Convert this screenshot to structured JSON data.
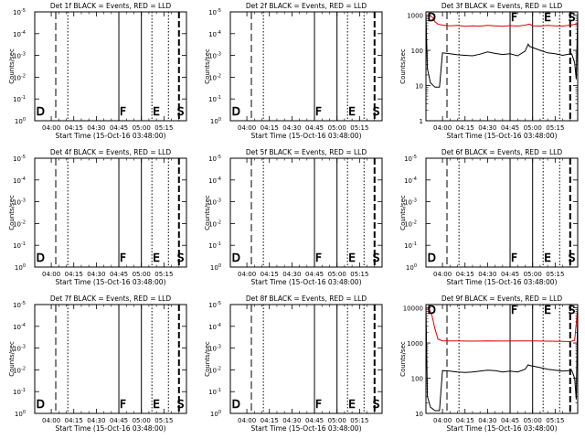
{
  "chart_data": [
    {
      "type": "line",
      "title": "Det 1f BLACK = Events, RED = LLD",
      "xlabel": "Start Time (15-Oct-16 03:48:00)",
      "ylabel": "Counts/sec",
      "scale": "log",
      "yticks": [
        "10",
        "10",
        "10",
        "10",
        "10",
        "10"
      ],
      "yexps": [
        "0",
        "-1",
        "-2",
        "-3",
        "-4",
        "-5"
      ],
      "xticks": [
        "04:00",
        "04:15",
        "04:30",
        "04:45",
        "05:00",
        "05:15"
      ],
      "markers": [
        "D",
        "F",
        "E",
        "S"
      ],
      "series": []
    },
    {
      "type": "line",
      "title": "Det 2f BLACK = Events, RED = LLD",
      "xlabel": "Start Time (15-Oct-16 03:48:00)",
      "ylabel": "Counts/sec",
      "scale": "log",
      "yticks": [
        "10",
        "10",
        "10",
        "10",
        "10",
        "10"
      ],
      "yexps": [
        "0",
        "-1",
        "-2",
        "-3",
        "-4",
        "-5"
      ],
      "xticks": [
        "04:00",
        "04:15",
        "04:30",
        "04:45",
        "05:00",
        "05:15"
      ],
      "markers": [
        "D",
        "F",
        "E",
        "S"
      ],
      "series": []
    },
    {
      "type": "line",
      "title": "Det 3f BLACK = Events, RED = LLD",
      "xlabel": "Start Time (15-Oct-16 03:48:00)",
      "ylabel": "Counts/sec",
      "scale": "log",
      "yticks": [
        "1",
        "10",
        "100",
        "1000"
      ],
      "yexps": [],
      "xticks": [
        "04:00",
        "04:15",
        "04:30",
        "04:45",
        "05:00",
        "05:15"
      ],
      "markers": [
        "D",
        "F",
        "E",
        "S"
      ],
      "series": [
        {
          "color": "#dd0000",
          "x": [
            -11,
            -9,
            -7,
            -5,
            -3,
            0,
            5,
            10,
            15,
            20,
            25,
            30,
            35,
            40,
            45,
            50,
            55,
            58,
            60,
            65,
            70,
            75,
            80,
            85,
            88,
            90
          ],
          "y": [
            1000,
            980,
            900,
            650,
            560,
            520,
            500,
            510,
            480,
            500,
            490,
            510,
            500,
            480,
            505,
            490,
            520,
            560,
            500,
            490,
            510,
            500,
            490,
            520,
            550,
            560
          ]
        },
        {
          "color": "#000000",
          "x": [
            -11,
            -10,
            -8,
            -5,
            -2,
            0,
            5,
            10,
            15,
            20,
            25,
            30,
            35,
            40,
            45,
            50,
            55,
            57,
            58,
            60,
            65,
            70,
            75,
            80,
            84,
            86,
            88,
            89,
            90
          ],
          "y": [
            1000,
            30,
            12,
            9,
            9,
            85,
            80,
            75,
            72,
            70,
            78,
            90,
            82,
            76,
            80,
            70,
            95,
            150,
            130,
            120,
            100,
            85,
            80,
            72,
            78,
            80,
            45,
            15,
            1000
          ]
        }
      ]
    },
    {
      "type": "line",
      "title": "Det 4f BLACK = Events, RED = LLD",
      "xlabel": "Start Time (15-Oct-16 03:48:00)",
      "ylabel": "Counts/sec",
      "scale": "log",
      "yticks": [
        "10",
        "10",
        "10",
        "10",
        "10",
        "10"
      ],
      "yexps": [
        "0",
        "-1",
        "-2",
        "-3",
        "-4",
        "-5"
      ],
      "xticks": [
        "04:00",
        "04:15",
        "04:30",
        "04:45",
        "05:00",
        "05:15"
      ],
      "markers": [
        "D",
        "F",
        "E",
        "S"
      ],
      "series": []
    },
    {
      "type": "line",
      "title": "Det 5f BLACK = Events, RED = LLD",
      "xlabel": "Start Time (15-Oct-16 03:48:00)",
      "ylabel": "Counts/sec",
      "scale": "log",
      "yticks": [
        "10",
        "10",
        "10",
        "10",
        "10",
        "10"
      ],
      "yexps": [
        "0",
        "-1",
        "-2",
        "-3",
        "-4",
        "-5"
      ],
      "xticks": [
        "04:00",
        "04:15",
        "04:30",
        "04:45",
        "05:00",
        "05:15"
      ],
      "markers": [
        "D",
        "F",
        "E",
        "S"
      ],
      "series": []
    },
    {
      "type": "line",
      "title": "Det 6f BLACK = Events, RED = LLD",
      "xlabel": "Start Time (15-Oct-16 03:48:00)",
      "ylabel": "Counts/sec",
      "scale": "log",
      "yticks": [
        "10",
        "10",
        "10",
        "10",
        "10",
        "10"
      ],
      "yexps": [
        "0",
        "-1",
        "-2",
        "-3",
        "-4",
        "-5"
      ],
      "xticks": [
        "04:00",
        "04:15",
        "04:30",
        "04:45",
        "05:00",
        "05:15"
      ],
      "markers": [
        "D",
        "F",
        "E",
        "S"
      ],
      "series": []
    },
    {
      "type": "line",
      "title": "Det 7f BLACK = Events, RED = LLD",
      "xlabel": "Start Time (15-Oct-16 03:48:00)",
      "ylabel": "Counts/sec",
      "scale": "log",
      "yticks": [
        "10",
        "10",
        "10",
        "10",
        "10",
        "10"
      ],
      "yexps": [
        "0",
        "-1",
        "-2",
        "-3",
        "-4",
        "-5"
      ],
      "xticks": [
        "04:00",
        "04:15",
        "04:30",
        "04:45",
        "05:00",
        "05:15"
      ],
      "markers": [
        "D",
        "F",
        "E",
        "S"
      ],
      "series": []
    },
    {
      "type": "line",
      "title": "Det 8f BLACK = Events, RED = LLD",
      "xlabel": "Start Time (15-Oct-16 03:48:00)",
      "ylabel": "Counts/sec",
      "scale": "log",
      "yticks": [
        "10",
        "10",
        "10",
        "10",
        "10",
        "10"
      ],
      "yexps": [
        "0",
        "-1",
        "-2",
        "-3",
        "-4",
        "-5"
      ],
      "xticks": [
        "04:00",
        "04:15",
        "04:30",
        "04:45",
        "05:00",
        "05:15"
      ],
      "markers": [
        "D",
        "F",
        "E",
        "S"
      ],
      "series": []
    },
    {
      "type": "line",
      "title": "Det 9f BLACK = Events, RED = LLD",
      "xlabel": "Start Time (15-Oct-16 03:48:00)",
      "ylabel": "Counts/sec",
      "scale": "log",
      "yticks": [
        "10",
        "100",
        "1000",
        "10000"
      ],
      "yexps": [],
      "xticks": [
        "04:00",
        "04:15",
        "04:30",
        "04:45",
        "05:00",
        "05:15"
      ],
      "markers": [
        "D",
        "F",
        "E",
        "S"
      ],
      "series": [
        {
          "color": "#dd0000",
          "x": [
            -11,
            -9,
            -7,
            -5,
            -3,
            0,
            10,
            20,
            30,
            40,
            50,
            60,
            70,
            80,
            85,
            88,
            90
          ],
          "y": [
            10000,
            9500,
            6000,
            2500,
            1300,
            1150,
            1150,
            1130,
            1150,
            1140,
            1150,
            1150,
            1130,
            1120,
            1100,
            1200,
            10000
          ]
        },
        {
          "color": "#000000",
          "x": [
            -11,
            -10,
            -8,
            -5,
            -2,
            0,
            5,
            10,
            15,
            20,
            25,
            30,
            35,
            40,
            45,
            50,
            55,
            57,
            58,
            60,
            65,
            70,
            75,
            80,
            84,
            86,
            88,
            89,
            90
          ],
          "y": [
            10000,
            30,
            15,
            12,
            12,
            165,
            160,
            150,
            145,
            150,
            160,
            170,
            165,
            150,
            160,
            150,
            180,
            240,
            230,
            220,
            200,
            180,
            170,
            160,
            165,
            170,
            100,
            25,
            10000
          ]
        }
      ]
    }
  ]
}
